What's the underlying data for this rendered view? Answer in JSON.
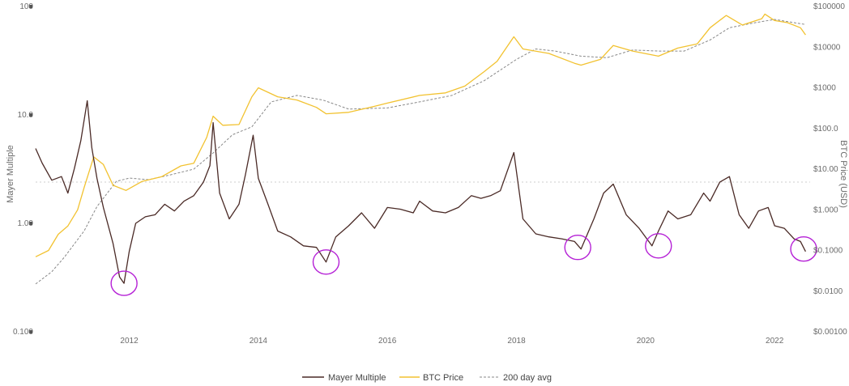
{
  "chart_data": {
    "type": "line",
    "title": "",
    "xlabel": "",
    "ylabel_left": "Mayer Multiple",
    "ylabel_right": "BTC Price (USD)",
    "x_range": [
      2010.55,
      2022.55
    ],
    "x_ticks": [
      "2012",
      "2014",
      "2016",
      "2018",
      "2020",
      "2022"
    ],
    "left_axis": {
      "scale": "log",
      "ylim": [
        0.1,
        100
      ],
      "ticks": [
        "0.100",
        "1.00",
        "10.0",
        "100"
      ]
    },
    "right_axis": {
      "scale": "log",
      "ylim": [
        0.001,
        100000
      ],
      "ticks": [
        "$0.00100",
        "$0.0100",
        "$0.1000",
        "$1.000",
        "$10.00",
        "$100.0",
        "$1000",
        "$10000",
        "$100000"
      ]
    },
    "reference_line": {
      "value": 2.4,
      "style": "dotted"
    },
    "legend": {
      "placement": "bottom-center",
      "items": [
        "Mayer Multiple",
        "BTC Price",
        "200 day avg"
      ]
    },
    "colors": {
      "mayer": "#4a2a26",
      "price": "#f2c230",
      "avg": "#888888",
      "circle": "#b521d6",
      "grid": "#cccccc"
    },
    "series": [
      {
        "name": "Mayer Multiple",
        "axis": "left",
        "x": [
          2010.55,
          2010.65,
          2010.8,
          2010.95,
          2011.05,
          2011.15,
          2011.25,
          2011.35,
          2011.42,
          2011.5,
          2011.6,
          2011.75,
          2011.85,
          2011.92,
          2012.0,
          2012.1,
          2012.25,
          2012.4,
          2012.55,
          2012.7,
          2012.85,
          2013.0,
          2013.15,
          2013.25,
          2013.3,
          2013.4,
          2013.55,
          2013.7,
          2013.8,
          2013.92,
          2014.0,
          2014.15,
          2014.3,
          2014.5,
          2014.7,
          2014.9,
          2015.05,
          2015.2,
          2015.4,
          2015.6,
          2015.8,
          2016.0,
          2016.2,
          2016.4,
          2016.5,
          2016.7,
          2016.9,
          2017.1,
          2017.3,
          2017.45,
          2017.6,
          2017.75,
          2017.96,
          2018.1,
          2018.3,
          2018.5,
          2018.7,
          2018.9,
          2019.0,
          2019.2,
          2019.35,
          2019.5,
          2019.7,
          2019.9,
          2020.1,
          2020.2,
          2020.35,
          2020.5,
          2020.7,
          2020.9,
          2021.0,
          2021.15,
          2021.3,
          2021.45,
          2021.6,
          2021.75,
          2021.9,
          2022.0,
          2022.15,
          2022.3,
          2022.4,
          2022.48
        ],
        "values": [
          4.9,
          3.6,
          2.5,
          2.7,
          1.9,
          3.2,
          5.8,
          13.5,
          5.0,
          2.6,
          1.4,
          0.65,
          0.32,
          0.28,
          0.55,
          1.0,
          1.15,
          1.2,
          1.5,
          1.3,
          1.6,
          1.8,
          2.4,
          3.4,
          8.5,
          1.9,
          1.1,
          1.5,
          2.8,
          6.5,
          2.6,
          1.5,
          0.85,
          0.75,
          0.62,
          0.6,
          0.44,
          0.75,
          0.95,
          1.25,
          0.9,
          1.4,
          1.35,
          1.25,
          1.6,
          1.3,
          1.25,
          1.4,
          1.8,
          1.7,
          1.8,
          2.0,
          4.5,
          1.1,
          0.8,
          0.75,
          0.72,
          0.68,
          0.58,
          1.1,
          1.9,
          2.3,
          1.2,
          0.9,
          0.62,
          0.85,
          1.3,
          1.1,
          1.2,
          1.9,
          1.6,
          2.4,
          2.7,
          1.2,
          0.9,
          1.3,
          1.4,
          0.95,
          0.9,
          0.72,
          0.68,
          0.55
        ]
      },
      {
        "name": "BTC Price",
        "axis": "right",
        "x": [
          2010.55,
          2010.75,
          2010.9,
          2011.05,
          2011.2,
          2011.3,
          2011.45,
          2011.6,
          2011.75,
          2011.95,
          2012.2,
          2012.5,
          2012.8,
          2013.0,
          2013.2,
          2013.3,
          2013.45,
          2013.7,
          2013.9,
          2014.0,
          2014.3,
          2014.6,
          2014.9,
          2015.05,
          2015.4,
          2015.8,
          2016.0,
          2016.5,
          2016.9,
          2017.2,
          2017.5,
          2017.7,
          2017.96,
          2018.1,
          2018.5,
          2018.9,
          2019.0,
          2019.3,
          2019.5,
          2019.8,
          2020.2,
          2020.5,
          2020.8,
          2021.0,
          2021.25,
          2021.5,
          2021.8,
          2021.85,
          2022.0,
          2022.2,
          2022.4,
          2022.48
        ],
        "values": [
          0.07,
          0.1,
          0.25,
          0.4,
          1.0,
          3.5,
          20,
          13,
          4.0,
          3.0,
          5.0,
          6.5,
          12,
          14,
          60,
          200,
          120,
          125,
          600,
          1000,
          600,
          500,
          330,
          230,
          250,
          350,
          420,
          650,
          750,
          1100,
          2500,
          4500,
          18000,
          9000,
          7000,
          4000,
          3600,
          5000,
          11000,
          8000,
          6000,
          9500,
          12000,
          30000,
          60000,
          35000,
          50000,
          65000,
          45000,
          40000,
          30000,
          20000
        ]
      },
      {
        "name": "200 day avg",
        "axis": "right",
        "x": [
          2010.55,
          2010.8,
          2011.0,
          2011.3,
          2011.5,
          2011.8,
          2012.0,
          2012.3,
          2012.6,
          2013.0,
          2013.3,
          2013.6,
          2013.9,
          2014.2,
          2014.6,
          2015.0,
          2015.4,
          2016.0,
          2016.5,
          2017.0,
          2017.5,
          2018.0,
          2018.3,
          2018.6,
          2019.0,
          2019.4,
          2019.8,
          2020.2,
          2020.6,
          2021.0,
          2021.3,
          2021.7,
          2022.0,
          2022.3,
          2022.48
        ],
        "values": [
          0.015,
          0.03,
          0.07,
          0.3,
          1.2,
          5.0,
          6.0,
          5.5,
          7.0,
          10,
          25,
          70,
          110,
          450,
          650,
          500,
          300,
          320,
          450,
          650,
          1500,
          5000,
          9000,
          8000,
          6000,
          5500,
          8500,
          8000,
          8000,
          15000,
          30000,
          40000,
          48000,
          40000,
          36000
        ]
      }
    ],
    "highlighted_lows": [
      {
        "x": 2011.92,
        "value": 0.28
      },
      {
        "x": 2015.05,
        "value": 0.44
      },
      {
        "x": 2018.95,
        "value": 0.6
      },
      {
        "x": 2020.2,
        "value": 0.62
      },
      {
        "x": 2022.45,
        "value": 0.58
      }
    ]
  }
}
